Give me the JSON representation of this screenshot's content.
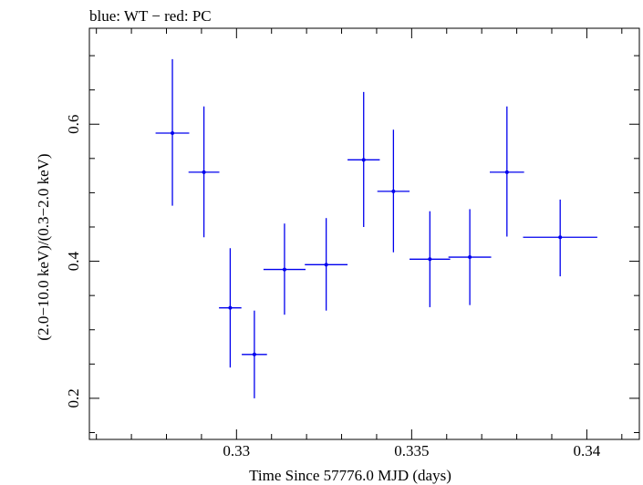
{
  "chart_data": {
    "type": "scatter",
    "title": "blue: WT − red: PC",
    "xlabel": "Time Since 57776.0 MJD (days)",
    "ylabel": "(2.0−10.0 keV)/(0.3−2.0 keV)",
    "xlim": [
      0.3258,
      0.3415
    ],
    "ylim": [
      0.14,
      0.74
    ],
    "x_ticks": [
      {
        "value": 0.33,
        "label": "0.33"
      },
      {
        "value": 0.335,
        "label": "0.335"
      },
      {
        "value": 0.34,
        "label": "0.34"
      }
    ],
    "y_ticks": [
      {
        "value": 0.2,
        "label": "0.2"
      },
      {
        "value": 0.4,
        "label": "0.4"
      },
      {
        "value": 0.6,
        "label": "0.6"
      }
    ],
    "grid": false,
    "series": [
      {
        "color": "#0000ee",
        "points": [
          {
            "x": 0.32817,
            "xerr": 0.00048,
            "y": 0.587,
            "ylo": 0.481,
            "yhi": 0.695
          },
          {
            "x": 0.32907,
            "xerr": 0.00044,
            "y": 0.53,
            "ylo": 0.435,
            "yhi": 0.626
          },
          {
            "x": 0.32982,
            "xerr": 0.00032,
            "y": 0.332,
            "ylo": 0.245,
            "yhi": 0.419
          },
          {
            "x": 0.33051,
            "xerr": 0.00036,
            "y": 0.264,
            "ylo": 0.2,
            "yhi": 0.328
          },
          {
            "x": 0.33137,
            "xerr": 0.0006,
            "y": 0.388,
            "ylo": 0.322,
            "yhi": 0.455
          },
          {
            "x": 0.33256,
            "xerr": 0.00061,
            "y": 0.395,
            "ylo": 0.328,
            "yhi": 0.463
          },
          {
            "x": 0.33363,
            "xerr": 0.00046,
            "y": 0.548,
            "ylo": 0.45,
            "yhi": 0.647
          },
          {
            "x": 0.33448,
            "xerr": 0.00046,
            "y": 0.502,
            "ylo": 0.413,
            "yhi": 0.592
          },
          {
            "x": 0.33552,
            "xerr": 0.00058,
            "y": 0.403,
            "ylo": 0.333,
            "yhi": 0.473
          },
          {
            "x": 0.33666,
            "xerr": 0.00061,
            "y": 0.406,
            "ylo": 0.336,
            "yhi": 0.476
          },
          {
            "x": 0.33772,
            "xerr": 0.00049,
            "y": 0.53,
            "ylo": 0.436,
            "yhi": 0.626
          },
          {
            "x": 0.33924,
            "xerr": 0.00106,
            "y": 0.435,
            "ylo": 0.378,
            "yhi": 0.49
          }
        ]
      }
    ]
  }
}
